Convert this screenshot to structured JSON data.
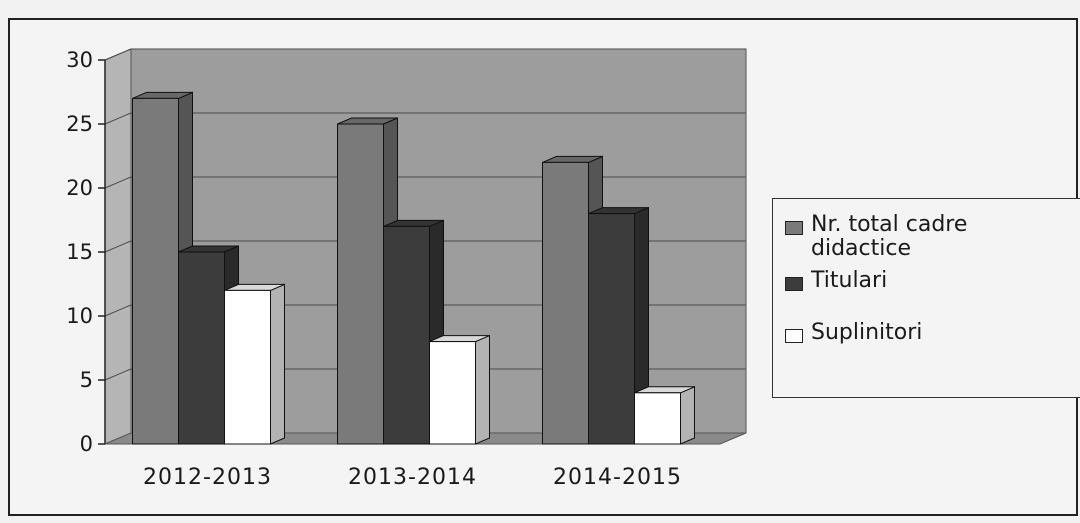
{
  "chart_data": {
    "type": "bar",
    "style": "3d-clustered-column",
    "categories": [
      "2012-2013",
      "2013-2014",
      "2014-2015"
    ],
    "series": [
      {
        "name": "Nr. total cadre didactice",
        "color": "#7a7a7a",
        "values": [
          27,
          25,
          22
        ]
      },
      {
        "name": "Titulari",
        "color": "#3c3c3c",
        "values": [
          15,
          17,
          18
        ]
      },
      {
        "name": "Suplinitori",
        "color": "#ffffff",
        "values": [
          12,
          8,
          4
        ]
      }
    ],
    "title": "",
    "xlabel": "",
    "ylabel": "",
    "ylim": [
      0,
      30
    ],
    "yticks": [
      0,
      5,
      10,
      15,
      20,
      25,
      30
    ],
    "grid": true,
    "legend_position": "right"
  }
}
